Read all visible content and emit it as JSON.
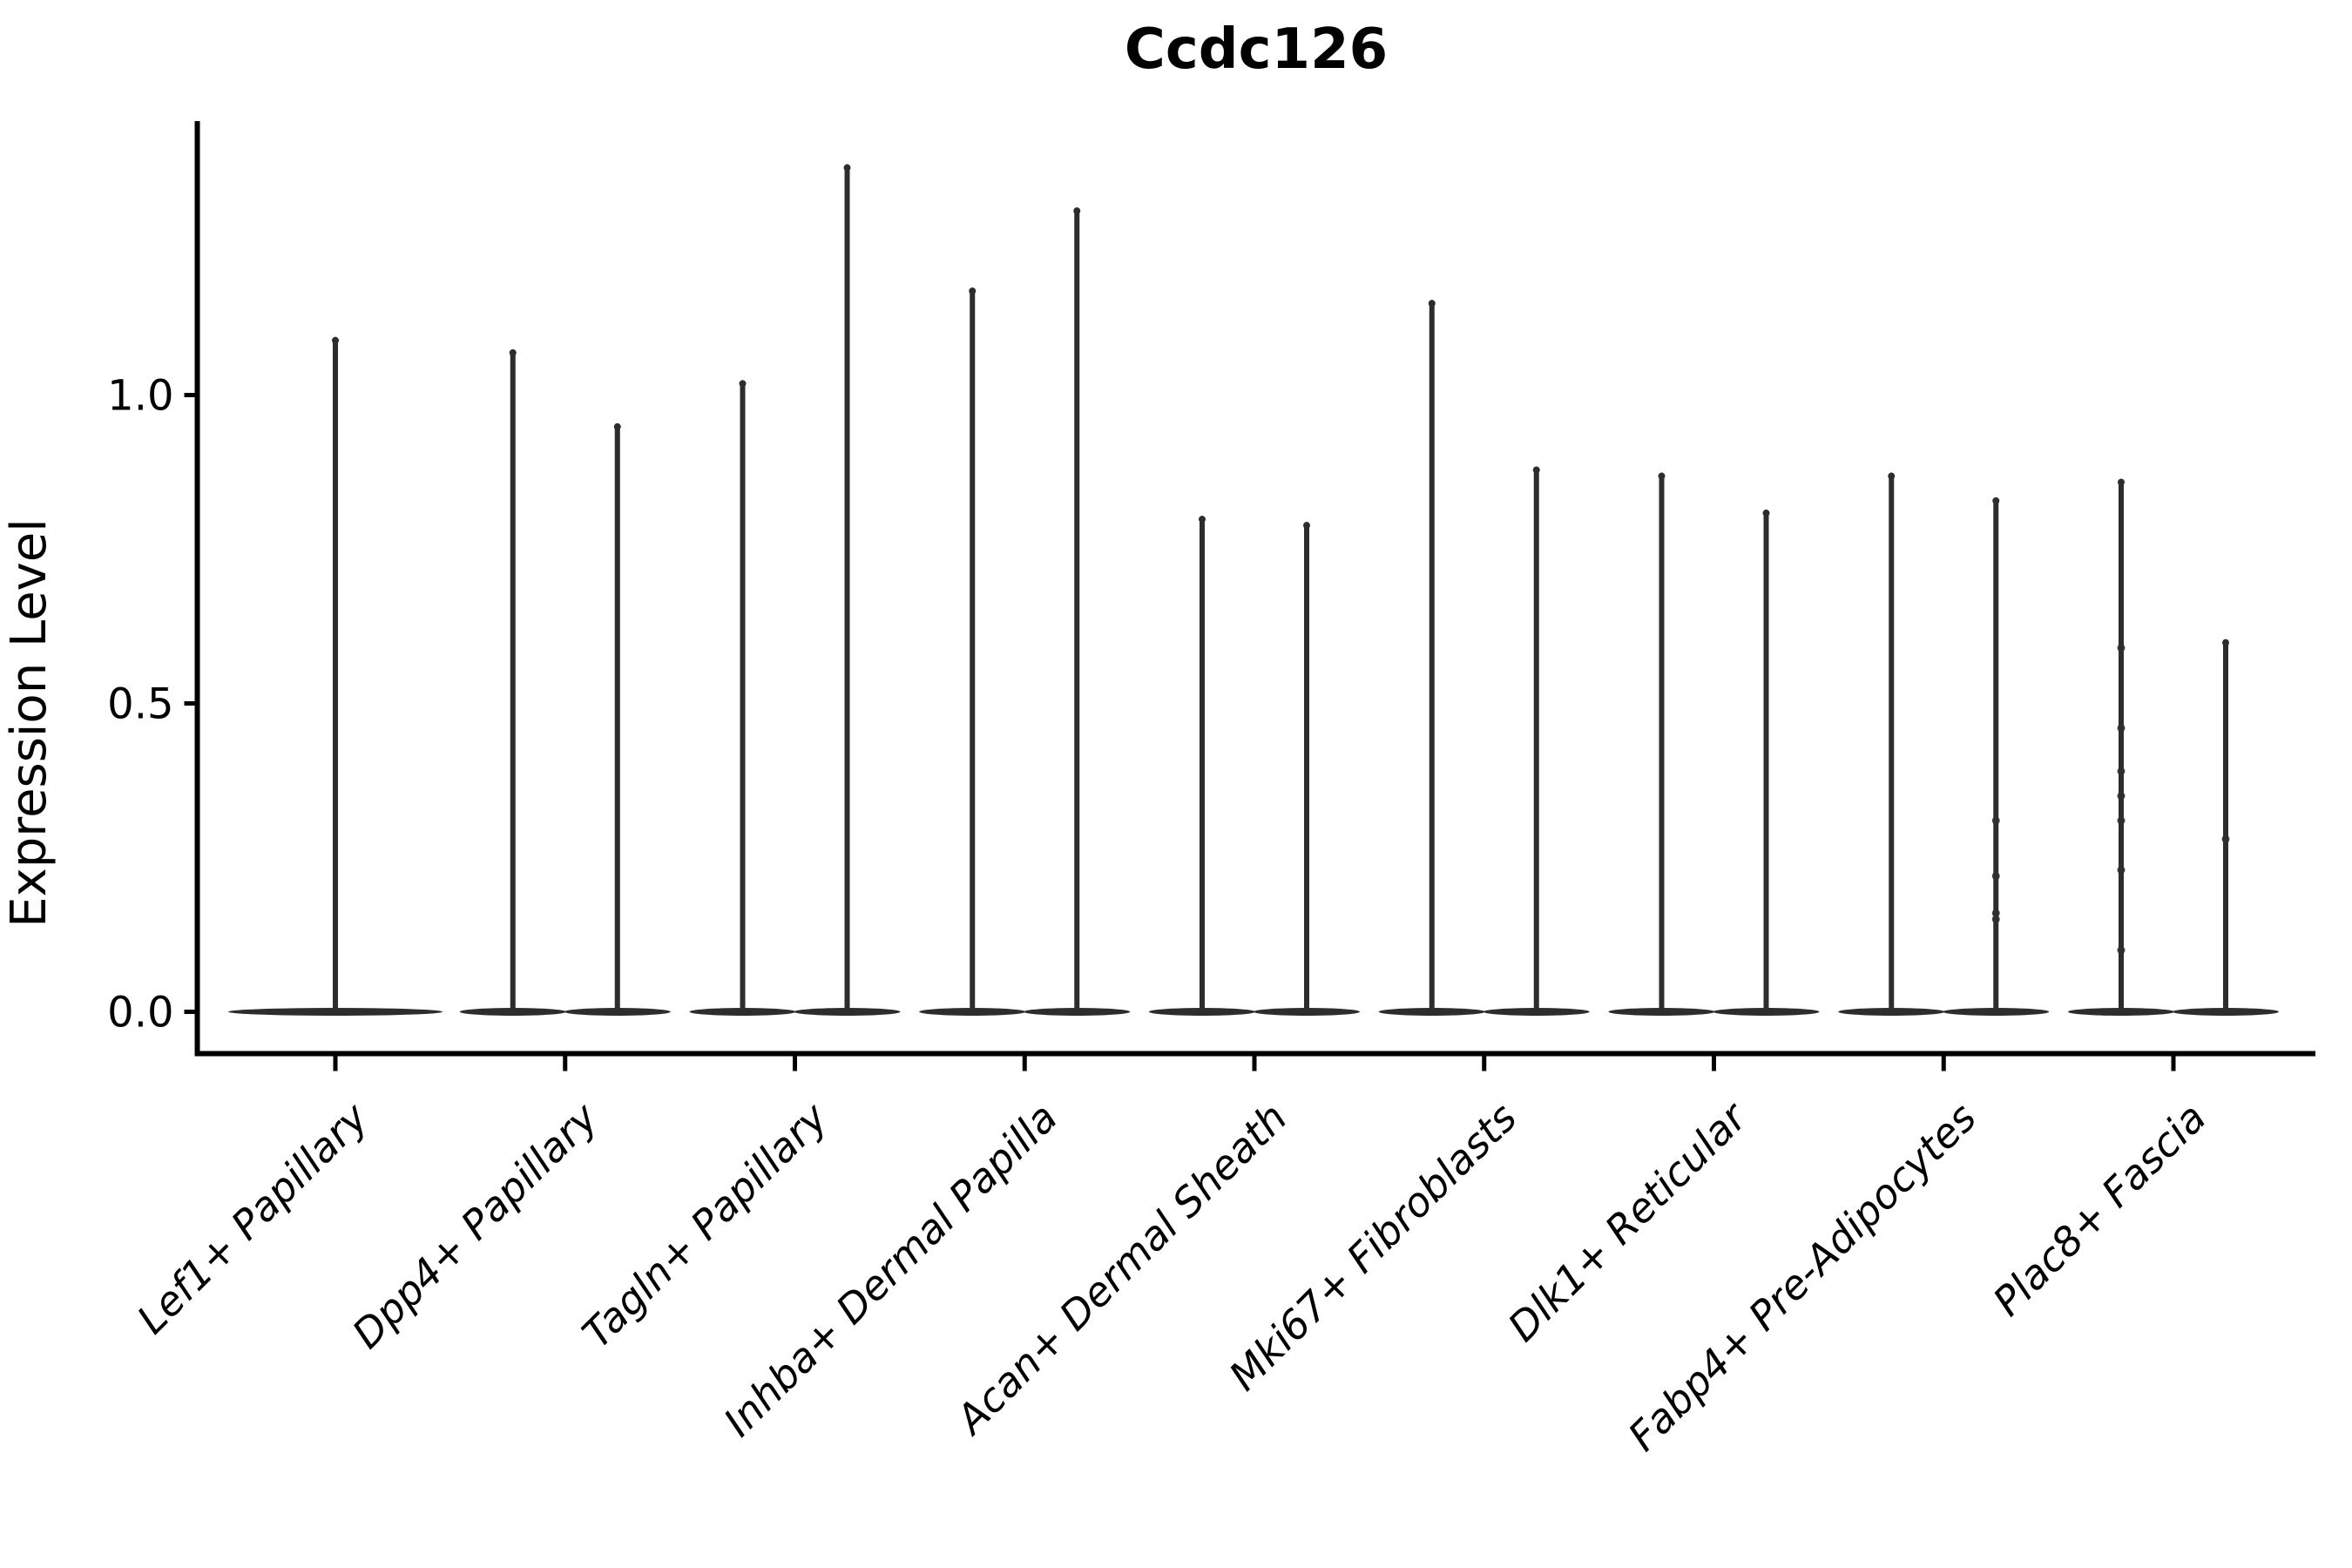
{
  "title": "Ccdc126",
  "colors": {
    "background": "#ffffff",
    "axis": "#000000",
    "text": "#000000",
    "violin": "#2d2d2d",
    "jitter_dot": "#2f2f2f"
  },
  "chart_data": {
    "type": "violin",
    "title": "Ccdc126",
    "xlabel": "",
    "ylabel": "Expression Level",
    "yticks": [
      0.0,
      0.5,
      1.0
    ],
    "ylim": [
      -0.07,
      1.45
    ],
    "grid": false,
    "legend": "none",
    "x_tick_label_rotation_deg": 45,
    "categories": [
      "Lef1+ Papillary",
      "Dpp4+ Papillary",
      "Tagln+ Papillary",
      "Inhba+ Dermal Papilla",
      "Acan+ Dermal Sheath",
      "Mki67+ Fibroblasts",
      "Dlk1+ Reticular",
      "Fabp4+ Pre-Adipocytes",
      "Plac8+ Fascia"
    ],
    "description": "Violin plot of expression; most cells at 0 so each violin collapses to a wide flat base at 0 with a thin spike up to its maximum. First category has one violin; the rest have two side-by-side violins.",
    "violins": [
      {
        "category_index": 0,
        "pos": "center",
        "max": 1.09
      },
      {
        "category_index": 1,
        "pos": "left",
        "max": 1.07
      },
      {
        "category_index": 1,
        "pos": "right",
        "max": 0.95
      },
      {
        "category_index": 2,
        "pos": "left",
        "max": 1.02
      },
      {
        "category_index": 2,
        "pos": "right",
        "max": 1.37
      },
      {
        "category_index": 3,
        "pos": "left",
        "max": 1.17
      },
      {
        "category_index": 3,
        "pos": "right",
        "max": 1.3
      },
      {
        "category_index": 4,
        "pos": "left",
        "max": 0.8
      },
      {
        "category_index": 4,
        "pos": "right",
        "max": 0.79
      },
      {
        "category_index": 5,
        "pos": "left",
        "max": 1.15
      },
      {
        "category_index": 5,
        "pos": "right",
        "max": 0.88
      },
      {
        "category_index": 6,
        "pos": "left",
        "max": 0.87
      },
      {
        "category_index": 6,
        "pos": "right",
        "max": 0.81
      },
      {
        "category_index": 7,
        "pos": "left",
        "max": 0.87
      },
      {
        "category_index": 7,
        "pos": "right",
        "max": 0.83
      },
      {
        "category_index": 8,
        "pos": "left",
        "max": 0.86
      },
      {
        "category_index": 8,
        "pos": "right",
        "max": 0.6
      }
    ],
    "jitter_points": [
      {
        "category_index": 7,
        "pos": "right",
        "values": [
          0.31,
          0.22,
          0.16,
          0.15
        ]
      },
      {
        "category_index": 8,
        "pos": "left",
        "values": [
          0.59,
          0.46,
          0.39,
          0.35,
          0.31,
          0.23,
          0.1
        ]
      },
      {
        "category_index": 8,
        "pos": "right",
        "values": [
          0.28
        ]
      }
    ]
  }
}
